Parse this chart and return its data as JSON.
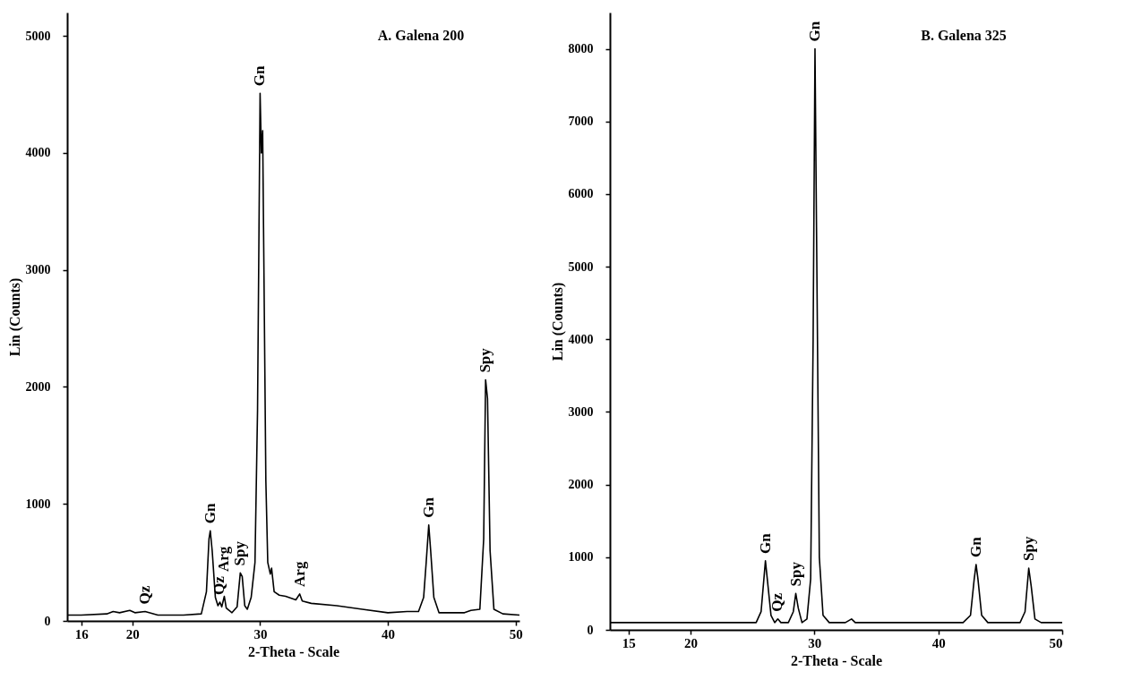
{
  "chart_data": [
    {
      "type": "line",
      "title": "A. Galena 200",
      "xlabel": "2-Theta - Scale",
      "ylabel": "Lin (Counts)",
      "xlim": [
        14.9,
        50.3
      ],
      "xticks": [
        16,
        20,
        30,
        40,
        50
      ],
      "ylim": [
        0,
        5200
      ],
      "yticks": [
        0,
        1000,
        2000,
        3000,
        4000,
        5000
      ],
      "grid": false,
      "marker": "none",
      "line_style": "solid",
      "series": [
        {
          "color": "#000000",
          "x": [
            14.9,
            16,
            18,
            18.5,
            19,
            19.8,
            20.2,
            21,
            22,
            24,
            25.4,
            25.8,
            26.0,
            26.1,
            26.25,
            26.5,
            26.7,
            26.85,
            27.0,
            27.2,
            27.35,
            27.8,
            28.2,
            28.45,
            28.6,
            28.8,
            29.0,
            29.3,
            29.6,
            29.8,
            30.0,
            30.1,
            30.2,
            30.3,
            30.45,
            30.6,
            30.8,
            30.9,
            31.1,
            31.5,
            32,
            32.8,
            33.1,
            33.3,
            34,
            36,
            38,
            40,
            41.5,
            42.4,
            42.8,
            43.0,
            43.2,
            43.35,
            43.6,
            44,
            46,
            46.5,
            47.2,
            47.5,
            47.65,
            47.8,
            48,
            48.3,
            49,
            50.3
          ],
          "values": [
            50,
            50,
            60,
            80,
            70,
            90,
            70,
            80,
            50,
            50,
            60,
            250,
            700,
            770,
            600,
            200,
            130,
            160,
            120,
            210,
            110,
            70,
            120,
            410,
            380,
            130,
            100,
            200,
            500,
            1800,
            4510,
            4000,
            4190,
            3000,
            1200,
            500,
            400,
            450,
            250,
            220,
            210,
            180,
            230,
            170,
            150,
            130,
            100,
            70,
            80,
            80,
            200,
            500,
            820,
            600,
            200,
            70,
            70,
            90,
            100,
            700,
            2060,
            1900,
            600,
            100,
            60,
            50
          ]
        }
      ],
      "annotations": [
        {
          "text": "Qz",
          "x": 21,
          "y": 80
        },
        {
          "text": "Gn",
          "x": 26.1,
          "y": 770
        },
        {
          "text": "Qz",
          "x": 26.85,
          "y": 160
        },
        {
          "text": "Arg",
          "x": 27.2,
          "y": 210
        },
        {
          "text": "Spy",
          "x": 28.45,
          "y": 410
        },
        {
          "text": "Gn",
          "x": 30.0,
          "y": 4510
        },
        {
          "text": "Arg",
          "x": 33.1,
          "y": 230
        },
        {
          "text": "Gn",
          "x": 43.2,
          "y": 820
        },
        {
          "text": "Spy",
          "x": 47.65,
          "y": 2060
        }
      ]
    },
    {
      "type": "line",
      "title": "B. Galena 325",
      "xlabel": "2-Theta - Scale",
      "ylabel": "Lin (Counts)",
      "xlim": [
        13.5,
        50
      ],
      "xticks": [
        15,
        20,
        30,
        40,
        50
      ],
      "ylim": [
        0,
        8500
      ],
      "yticks": [
        0,
        1000,
        2000,
        3000,
        4000,
        5000,
        6000,
        7000,
        8000
      ],
      "grid": false,
      "marker": "none",
      "line_style": "solid",
      "series": [
        {
          "color": "#000000",
          "x": [
            13.5,
            16,
            18,
            20,
            22,
            24,
            25.3,
            25.7,
            25.95,
            26.05,
            26.2,
            26.5,
            26.8,
            27.05,
            27.3,
            27.9,
            28.3,
            28.5,
            28.7,
            29.0,
            29.4,
            29.7,
            29.9,
            30.05,
            30.2,
            30.4,
            30.7,
            31.2,
            32.5,
            33.0,
            33.3,
            38,
            39,
            42,
            42.6,
            42.9,
            43.05,
            43.2,
            43.5,
            44,
            46.6,
            47.0,
            47.3,
            47.5,
            47.8,
            48.3,
            50
          ],
          "values": [
            100,
            100,
            100,
            100,
            100,
            100,
            100,
            250,
            750,
            950,
            700,
            200,
            100,
            150,
            100,
            100,
            250,
            500,
            300,
            100,
            150,
            700,
            4000,
            8000,
            5000,
            1000,
            200,
            100,
            100,
            150,
            100,
            100,
            100,
            100,
            200,
            700,
            900,
            700,
            200,
            100,
            100,
            250,
            850,
            600,
            150,
            100,
            100
          ]
        }
      ],
      "annotations": [
        {
          "text": "Gn",
          "x": 26.05,
          "y": 950
        },
        {
          "text": "Qz",
          "x": 27.05,
          "y": 150
        },
        {
          "text": "Spy",
          "x": 28.5,
          "y": 500
        },
        {
          "text": "Gn",
          "x": 30.05,
          "y": 8000
        },
        {
          "text": "Gn",
          "x": 43.05,
          "y": 900
        },
        {
          "text": "Spy",
          "x": 47.3,
          "y": 850
        }
      ]
    }
  ]
}
